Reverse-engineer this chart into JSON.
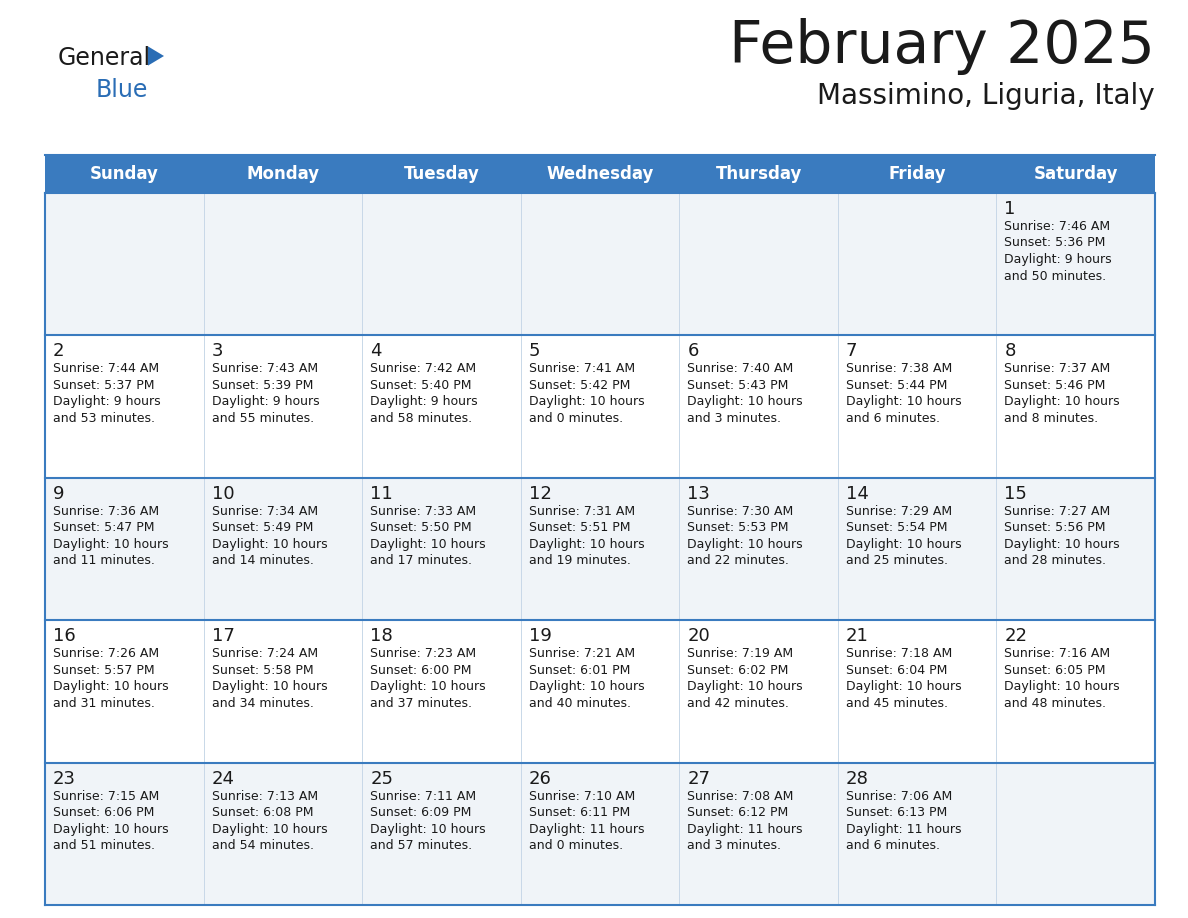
{
  "title": "February 2025",
  "subtitle": "Massimino, Liguria, Italy",
  "header_color": "#3a7bbf",
  "header_text_color": "#ffffff",
  "cell_bg_even": "#f0f4f8",
  "cell_bg_odd": "#ffffff",
  "border_color": "#3a7bbf",
  "grid_line_color": "#c8d8e8",
  "day_names": [
    "Sunday",
    "Monday",
    "Tuesday",
    "Wednesday",
    "Thursday",
    "Friday",
    "Saturday"
  ],
  "title_color": "#1a1a1a",
  "subtitle_color": "#1a1a1a",
  "day_num_color": "#1a1a1a",
  "info_color": "#1a1a1a",
  "logo_general_color": "#1a1a1a",
  "logo_blue_color": "#2a6db5",
  "logo_triangle_color": "#2a6db5",
  "weeks": [
    [
      {
        "day": null,
        "info": ""
      },
      {
        "day": null,
        "info": ""
      },
      {
        "day": null,
        "info": ""
      },
      {
        "day": null,
        "info": ""
      },
      {
        "day": null,
        "info": ""
      },
      {
        "day": null,
        "info": ""
      },
      {
        "day": 1,
        "info": "Sunrise: 7:46 AM\nSunset: 5:36 PM\nDaylight: 9 hours\nand 50 minutes."
      }
    ],
    [
      {
        "day": 2,
        "info": "Sunrise: 7:44 AM\nSunset: 5:37 PM\nDaylight: 9 hours\nand 53 minutes."
      },
      {
        "day": 3,
        "info": "Sunrise: 7:43 AM\nSunset: 5:39 PM\nDaylight: 9 hours\nand 55 minutes."
      },
      {
        "day": 4,
        "info": "Sunrise: 7:42 AM\nSunset: 5:40 PM\nDaylight: 9 hours\nand 58 minutes."
      },
      {
        "day": 5,
        "info": "Sunrise: 7:41 AM\nSunset: 5:42 PM\nDaylight: 10 hours\nand 0 minutes."
      },
      {
        "day": 6,
        "info": "Sunrise: 7:40 AM\nSunset: 5:43 PM\nDaylight: 10 hours\nand 3 minutes."
      },
      {
        "day": 7,
        "info": "Sunrise: 7:38 AM\nSunset: 5:44 PM\nDaylight: 10 hours\nand 6 minutes."
      },
      {
        "day": 8,
        "info": "Sunrise: 7:37 AM\nSunset: 5:46 PM\nDaylight: 10 hours\nand 8 minutes."
      }
    ],
    [
      {
        "day": 9,
        "info": "Sunrise: 7:36 AM\nSunset: 5:47 PM\nDaylight: 10 hours\nand 11 minutes."
      },
      {
        "day": 10,
        "info": "Sunrise: 7:34 AM\nSunset: 5:49 PM\nDaylight: 10 hours\nand 14 minutes."
      },
      {
        "day": 11,
        "info": "Sunrise: 7:33 AM\nSunset: 5:50 PM\nDaylight: 10 hours\nand 17 minutes."
      },
      {
        "day": 12,
        "info": "Sunrise: 7:31 AM\nSunset: 5:51 PM\nDaylight: 10 hours\nand 19 minutes."
      },
      {
        "day": 13,
        "info": "Sunrise: 7:30 AM\nSunset: 5:53 PM\nDaylight: 10 hours\nand 22 minutes."
      },
      {
        "day": 14,
        "info": "Sunrise: 7:29 AM\nSunset: 5:54 PM\nDaylight: 10 hours\nand 25 minutes."
      },
      {
        "day": 15,
        "info": "Sunrise: 7:27 AM\nSunset: 5:56 PM\nDaylight: 10 hours\nand 28 minutes."
      }
    ],
    [
      {
        "day": 16,
        "info": "Sunrise: 7:26 AM\nSunset: 5:57 PM\nDaylight: 10 hours\nand 31 minutes."
      },
      {
        "day": 17,
        "info": "Sunrise: 7:24 AM\nSunset: 5:58 PM\nDaylight: 10 hours\nand 34 minutes."
      },
      {
        "day": 18,
        "info": "Sunrise: 7:23 AM\nSunset: 6:00 PM\nDaylight: 10 hours\nand 37 minutes."
      },
      {
        "day": 19,
        "info": "Sunrise: 7:21 AM\nSunset: 6:01 PM\nDaylight: 10 hours\nand 40 minutes."
      },
      {
        "day": 20,
        "info": "Sunrise: 7:19 AM\nSunset: 6:02 PM\nDaylight: 10 hours\nand 42 minutes."
      },
      {
        "day": 21,
        "info": "Sunrise: 7:18 AM\nSunset: 6:04 PM\nDaylight: 10 hours\nand 45 minutes."
      },
      {
        "day": 22,
        "info": "Sunrise: 7:16 AM\nSunset: 6:05 PM\nDaylight: 10 hours\nand 48 minutes."
      }
    ],
    [
      {
        "day": 23,
        "info": "Sunrise: 7:15 AM\nSunset: 6:06 PM\nDaylight: 10 hours\nand 51 minutes."
      },
      {
        "day": 24,
        "info": "Sunrise: 7:13 AM\nSunset: 6:08 PM\nDaylight: 10 hours\nand 54 minutes."
      },
      {
        "day": 25,
        "info": "Sunrise: 7:11 AM\nSunset: 6:09 PM\nDaylight: 10 hours\nand 57 minutes."
      },
      {
        "day": 26,
        "info": "Sunrise: 7:10 AM\nSunset: 6:11 PM\nDaylight: 11 hours\nand 0 minutes."
      },
      {
        "day": 27,
        "info": "Sunrise: 7:08 AM\nSunset: 6:12 PM\nDaylight: 11 hours\nand 3 minutes."
      },
      {
        "day": 28,
        "info": "Sunrise: 7:06 AM\nSunset: 6:13 PM\nDaylight: 11 hours\nand 6 minutes."
      },
      {
        "day": null,
        "info": ""
      }
    ]
  ]
}
